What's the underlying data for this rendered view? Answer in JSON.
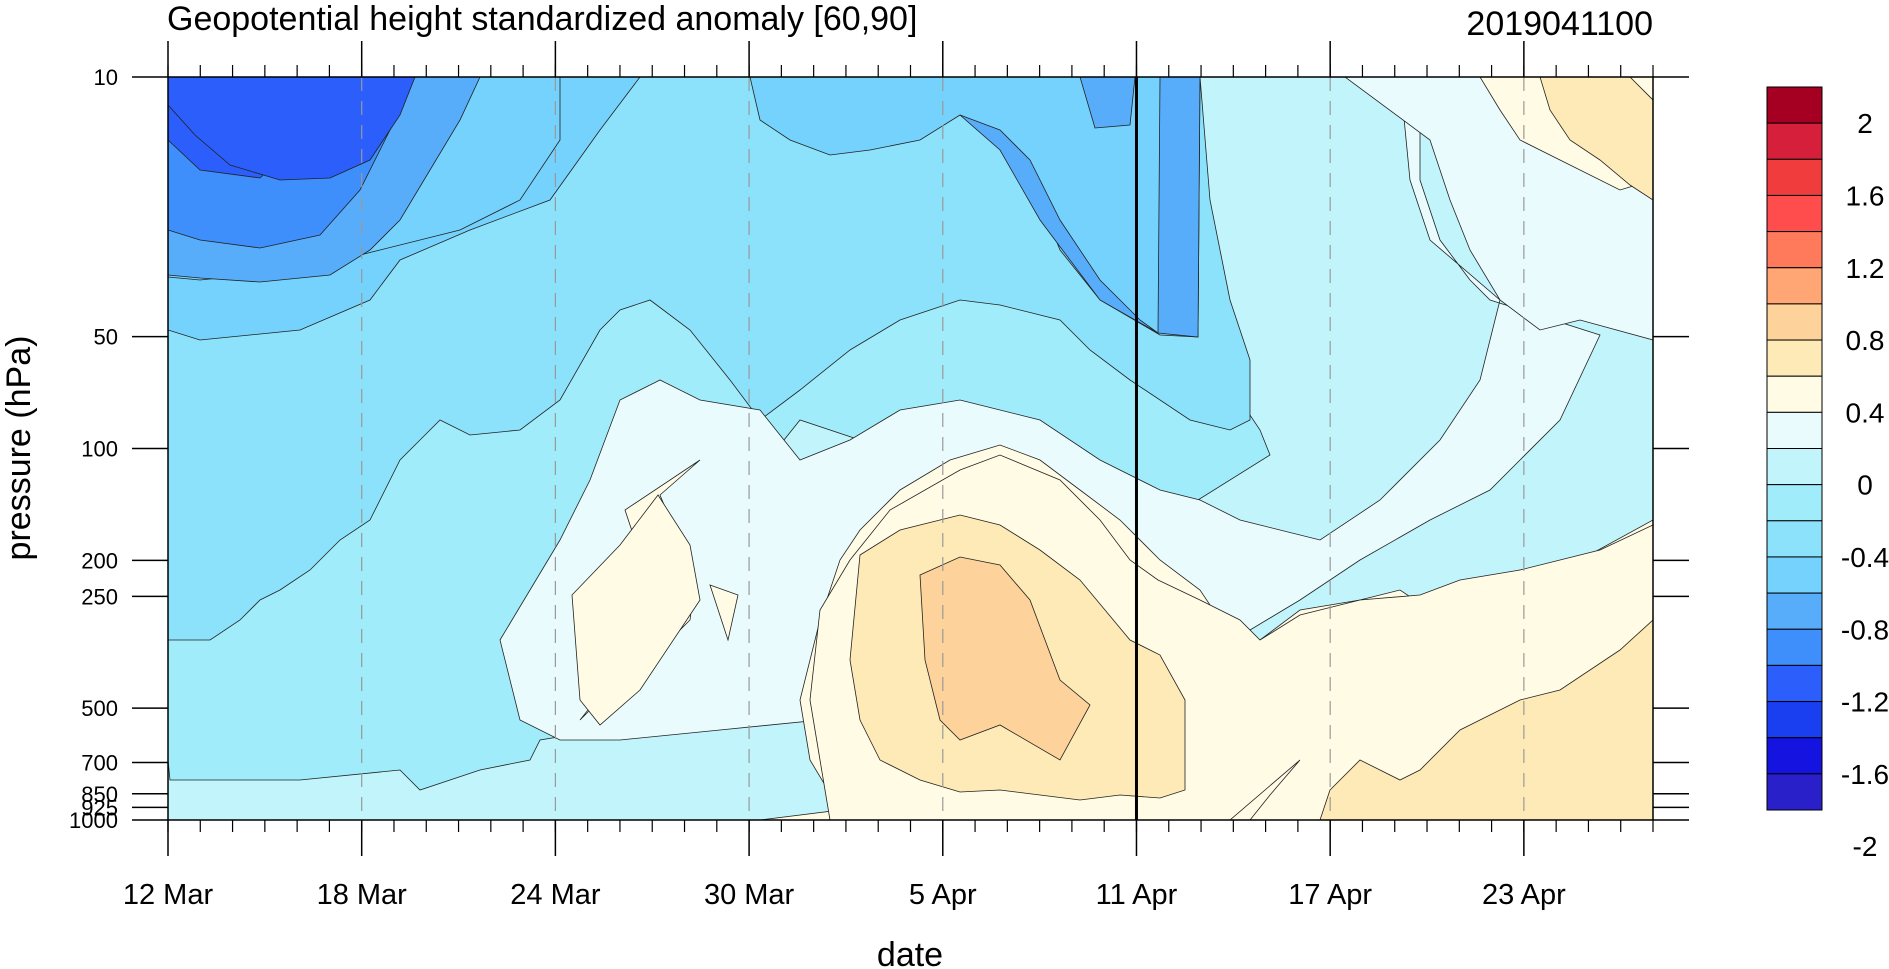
{
  "chart_data": {
    "type": "heatmap",
    "title": "Geopotential height standardized anomaly [60,90]",
    "run_label": "2019041100",
    "xlabel": "date",
    "ylabel": "pressure (hPa)",
    "x_ticks": [
      "12 Mar",
      "18 Mar",
      "24 Mar",
      "30 Mar",
      "5 Apr",
      "11 Apr",
      "17 Apr",
      "23 Apr"
    ],
    "x_range": [
      "12 Mar",
      "27 Apr"
    ],
    "y_ticks": [
      "10",
      "50",
      "100",
      "200",
      "250",
      "500",
      "700",
      "850",
      "925",
      "1000"
    ],
    "y_range": [
      1000,
      10
    ],
    "y_scale": "log",
    "forecast_start": "11 Apr",
    "grid": "dashed vertical lines at date ticks",
    "colorbar": {
      "labels": [
        "2",
        "1.6",
        "1.2",
        "0.8",
        "0.4",
        "0",
        "-0.4",
        "-0.8",
        "-1.2",
        "-1.6",
        "-2"
      ],
      "colors": [
        "#a50021",
        "#d6203b",
        "#f03c3c",
        "#ff4c4c",
        "#ff7a5a",
        "#ffa674",
        "#fdd29b",
        "#fdeab6",
        "#fffbe4",
        "#e9fbfd",
        "#c2f4fb",
        "#a0ecfb",
        "#8ce2fb",
        "#74d2fd",
        "#58adfb",
        "#3e8efb",
        "#2b5efb",
        "#1a3ff0",
        "#1413e0",
        "#2a20ca"
      ]
    },
    "regions": [
      {
        "level": "-1.6",
        "color": "#2b5efb",
        "location": "12–18 Mar, 10–30 hPa"
      },
      {
        "level": "-1.2",
        "color": "#3e8efb",
        "location": "12–22 Mar, 10–40 hPa"
      },
      {
        "level": "-1.0",
        "color": "#58adfb",
        "location": "12–24 Mar, 10–50 hPa; 10 hPa near 9 Apr"
      },
      {
        "level": "-0.8",
        "color": "#74d2fd",
        "location": "30 Mar–13 Apr, 10–50 hPa"
      },
      {
        "level": "-0.6",
        "color": "#8ce2fb",
        "location": "12 Mar–17 Apr, 10–100 hPa"
      },
      {
        "level": "-0.4",
        "color": "#a0ecfb",
        "location": "12 Mar–16 Apr, 50–1000 hPa"
      },
      {
        "level": "-0.2",
        "color": "#c2f4fb",
        "location": "widespread"
      },
      {
        "level": "0",
        "color": "#e9fbfd",
        "location": "24 Mar–27 Apr, 60–700 hPa"
      },
      {
        "level": "0.2",
        "color": "#fffbe4",
        "location": "1 Apr–27 Apr, 120–1000 hPa"
      },
      {
        "level": "0.4",
        "color": "#fdeab6",
        "location": "2–11 Apr, 150–1000 hPa; 18–27 Apr near surface; 23–27 Apr 10–40 hPa"
      },
      {
        "level": "0.6",
        "color": "#fdd29b",
        "location": "3–8 Apr, 250–700 hPa"
      }
    ]
  }
}
